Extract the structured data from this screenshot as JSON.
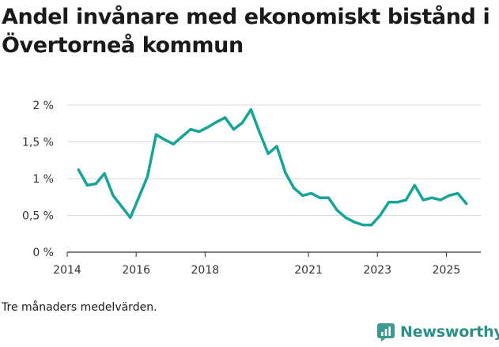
{
  "chart_data": {
    "type": "line",
    "title": "Andel invånare med ekonomiskt bistånd i Övertorneå kommun",
    "xlabel": "",
    "ylabel": "",
    "xlim": [
      2014.0,
      2026.0
    ],
    "ylim": [
      0,
      2
    ],
    "yticks": [
      0,
      0.5,
      1,
      1.5,
      2
    ],
    "ytick_labels": [
      "0 %",
      "0,5 %",
      "1 %",
      "1,5 %",
      "2 %"
    ],
    "xticks": [
      2014,
      2016,
      2018,
      2021,
      2023,
      2025
    ],
    "xtick_labels": [
      "2014",
      "2016",
      "2018",
      "2021",
      "2023",
      "2025"
    ],
    "grid": true,
    "series": [
      {
        "name": "Andel invånare med ekonomiskt bistånd",
        "color": "#17a398",
        "x": [
          2014.33,
          2014.58,
          2014.83,
          2015.08,
          2015.33,
          2015.58,
          2015.83,
          2016.08,
          2016.33,
          2016.58,
          2016.83,
          2017.08,
          2017.33,
          2017.58,
          2017.83,
          2018.08,
          2018.33,
          2018.58,
          2018.83,
          2019.08,
          2019.33,
          2019.58,
          2019.83,
          2020.08,
          2020.33,
          2020.58,
          2020.83,
          2021.08,
          2021.33,
          2021.58,
          2021.83,
          2022.08,
          2022.33,
          2022.58,
          2022.83,
          2023.08,
          2023.33,
          2023.58,
          2023.83,
          2024.08,
          2024.33,
          2024.58,
          2024.83,
          2025.08,
          2025.33,
          2025.58
        ],
        "values": [
          1.12,
          0.91,
          0.93,
          1.07,
          0.77,
          0.62,
          0.47,
          0.75,
          1.03,
          1.6,
          1.53,
          1.47,
          1.57,
          1.67,
          1.64,
          1.7,
          1.77,
          1.83,
          1.67,
          1.76,
          1.94,
          1.63,
          1.34,
          1.44,
          1.08,
          0.87,
          0.77,
          0.8,
          0.74,
          0.74,
          0.57,
          0.47,
          0.41,
          0.37,
          0.37,
          0.5,
          0.68,
          0.68,
          0.71,
          0.91,
          0.71,
          0.74,
          0.71,
          0.77,
          0.8,
          0.66
        ]
      }
    ]
  },
  "caption": "Tre månaders medelvärden.",
  "brand": {
    "name": "Newsworthy",
    "color": "#2d8f86"
  }
}
